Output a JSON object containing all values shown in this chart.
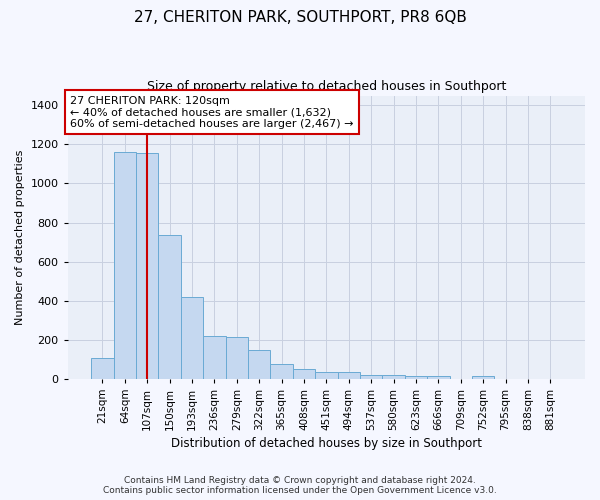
{
  "title": "27, CHERITON PARK, SOUTHPORT, PR8 6QB",
  "subtitle": "Size of property relative to detached houses in Southport",
  "xlabel": "Distribution of detached houses by size in Southport",
  "ylabel": "Number of detached properties",
  "footer_line1": "Contains HM Land Registry data © Crown copyright and database right 2024.",
  "footer_line2": "Contains public sector information licensed under the Open Government Licence v3.0.",
  "bar_labels": [
    "21sqm",
    "64sqm",
    "107sqm",
    "150sqm",
    "193sqm",
    "236sqm",
    "279sqm",
    "322sqm",
    "365sqm",
    "408sqm",
    "451sqm",
    "494sqm",
    "537sqm",
    "580sqm",
    "623sqm",
    "666sqm",
    "709sqm",
    "752sqm",
    "795sqm",
    "838sqm",
    "881sqm"
  ],
  "bar_values": [
    105,
    1160,
    1155,
    735,
    420,
    218,
    215,
    148,
    75,
    50,
    33,
    33,
    20,
    18,
    15,
    15,
    0,
    15,
    0,
    0,
    0
  ],
  "bar_color": "#c5d8f0",
  "bar_edge_color": "#6aaad4",
  "annotation_box_text": "27 CHERITON PARK: 120sqm\n← 40% of detached houses are smaller (1,632)\n60% of semi-detached houses are larger (2,467) →",
  "annotation_box_color": "#cc0000",
  "vline_color": "#cc0000",
  "vline_x_index": 2,
  "ylim": [
    0,
    1450
  ],
  "yticks": [
    0,
    200,
    400,
    600,
    800,
    1000,
    1200,
    1400
  ],
  "grid_color": "#c8d0e0",
  "bg_color": "#f5f7ff",
  "plot_bg_color": "#eaeff8",
  "title_fontsize": 11,
  "subtitle_fontsize": 9,
  "xlabel_fontsize": 8.5,
  "ylabel_fontsize": 8,
  "tick_fontsize": 7.5,
  "footer_fontsize": 6.5
}
